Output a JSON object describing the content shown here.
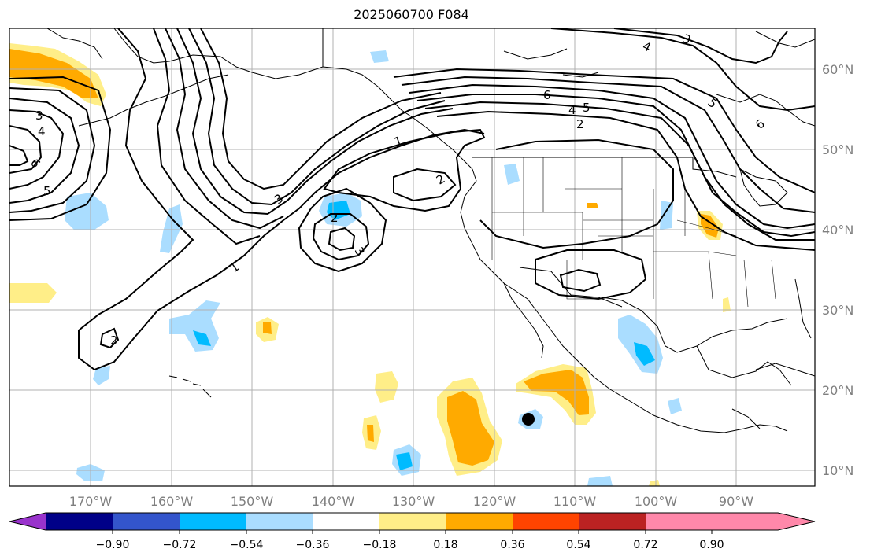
{
  "map": {
    "title": "2025060700 F084",
    "lon_labels": [
      "170°W",
      "160°W",
      "150°W",
      "140°W",
      "130°W",
      "120°W",
      "110°W",
      "100°W",
      "90°W"
    ],
    "lat_labels": [
      "60°N",
      "50°N",
      "40°N",
      "30°N",
      "20°N",
      "10°N"
    ]
  },
  "colorbar": {
    "colors": [
      "#9933cc",
      "#000088",
      "#3355cc",
      "#00bbff",
      "#aaddff",
      "#ffffff",
      "#ffee88",
      "#ffaa00",
      "#ff4400",
      "#bb2222",
      "#ff88aa"
    ],
    "tick_labels": [
      "−0.90",
      "−0.72",
      "−0.54",
      "−0.36",
      "−0.18",
      "0.18",
      "0.36",
      "0.54",
      "0.72",
      "0.90"
    ]
  },
  "contour_labels": [
    "1",
    "1",
    "2",
    "2",
    "2",
    "2",
    "3",
    "3",
    "3",
    "3",
    "4",
    "4",
    "4",
    "5",
    "5",
    "5",
    "6",
    "6",
    "6"
  ]
}
